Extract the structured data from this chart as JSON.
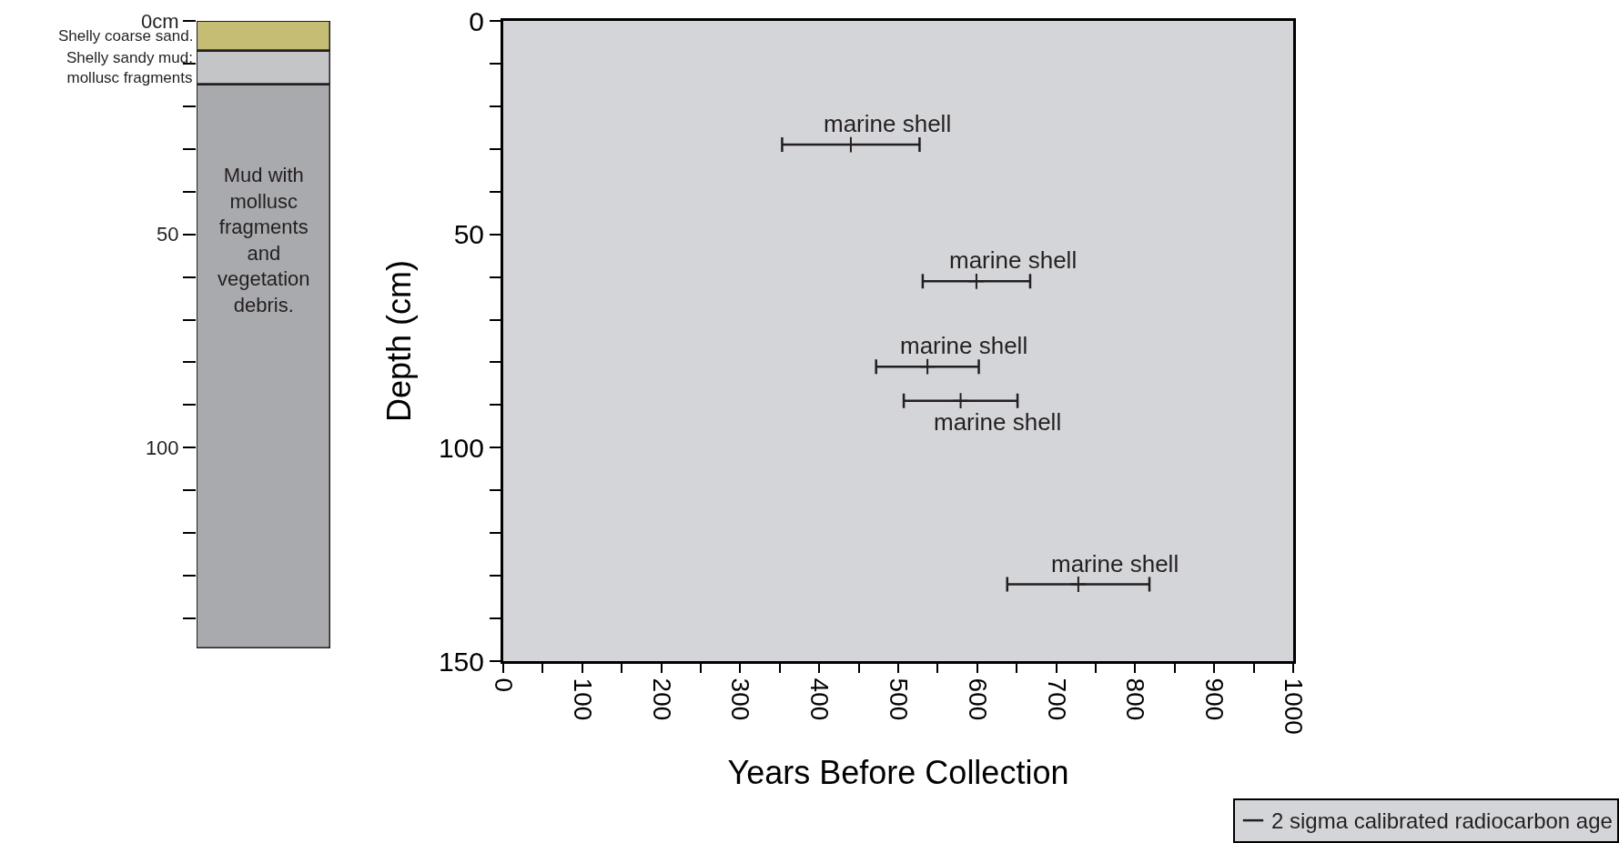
{
  "chart_data": [
    {
      "type": "bar",
      "stacked": true,
      "categories": [
        null
      ],
      "tick_labels": "y",
      "grid": false,
      "ylim": [
        147,
        0
      ],
      "yticks": [
        {
          "value": 0,
          "label": "0cm"
        },
        {
          "value": 10,
          "label": null
        },
        {
          "value": 20,
          "label": null
        },
        {
          "value": 30,
          "label": null
        },
        {
          "value": 40,
          "label": null
        },
        50,
        {
          "value": 60,
          "label": null
        },
        {
          "value": 70,
          "label": null
        },
        {
          "value": 80,
          "label": null
        },
        {
          "value": 90,
          "label": null
        },
        100,
        {
          "value": 110,
          "label": null
        },
        {
          "value": 120,
          "label": null
        },
        {
          "value": 130,
          "label": null
        },
        {
          "value": 140,
          "label": null
        }
      ],
      "series": [
        {
          "name": "Shelly coarse sand.",
          "color": "#c6bd74",
          "values": [
            7
          ]
        },
        {
          "name": "Shelly sandy mud;\nmollusc fragments",
          "color": "#c4c5c7",
          "values": [
            8
          ]
        },
        {
          "name": "Mud with\nmollusc\nfragments\nand\nvegetation\ndebris.",
          "color": "#a9aaae",
          "values": [
            132
          ]
        }
      ]
    },
    {
      "type": "scatter",
      "xlabel": "Years Before Collection",
      "ylabel": "Depth (cm)",
      "marker": "cross",
      "grid": false,
      "legend": "bottom right",
      "xlim": [
        0,
        1000
      ],
      "xticks": [
        0,
        {
          "value": 50,
          "label": null
        },
        100,
        {
          "value": 150,
          "label": null
        },
        200,
        {
          "value": 250,
          "label": null
        },
        300,
        {
          "value": 350,
          "label": null
        },
        400,
        {
          "value": 450,
          "label": null
        },
        500,
        {
          "value": 550,
          "label": null
        },
        600,
        {
          "value": 650,
          "label": null
        },
        700,
        {
          "value": 750,
          "label": null
        },
        800,
        {
          "value": 850,
          "label": null
        },
        900,
        {
          "value": 950,
          "label": null
        },
        1000
      ],
      "ylim": [
        150,
        0
      ],
      "yticks": [
        0,
        {
          "value": 10,
          "label": null
        },
        {
          "value": 20,
          "label": null
        },
        {
          "value": 30,
          "label": null
        },
        {
          "value": 40,
          "label": null
        },
        50,
        {
          "value": 60,
          "label": null
        },
        {
          "value": 70,
          "label": null
        },
        {
          "value": 80,
          "label": null
        },
        {
          "value": 90,
          "label": null
        },
        100,
        {
          "value": 110,
          "label": null
        },
        {
          "value": 120,
          "label": null
        },
        {
          "value": 130,
          "label": null
        },
        {
          "value": 140,
          "label": null
        },
        150
      ],
      "series": [
        {
          "name": "2 sigma calibrated radiocarbon age",
          "color": "#231f20",
          "x": [
            440,
            599,
            537,
            579,
            728
          ],
          "values": [
            29,
            61,
            81,
            89,
            132
          ],
          "xerrors": [
            87,
            68,
            65,
            72,
            90
          ]
        }
      ],
      "annotations": [
        {
          "text": "marine shell",
          "x": 440,
          "y": 29
        },
        {
          "text": "marine shell",
          "x": 599,
          "y": 61
        },
        {
          "text": "marine shell",
          "x": 537,
          "y": 81
        },
        {
          "text": "marine shell",
          "x": 579,
          "y": 89
        },
        {
          "text": "marine shell",
          "x": 728,
          "y": 132
        }
      ]
    }
  ]
}
